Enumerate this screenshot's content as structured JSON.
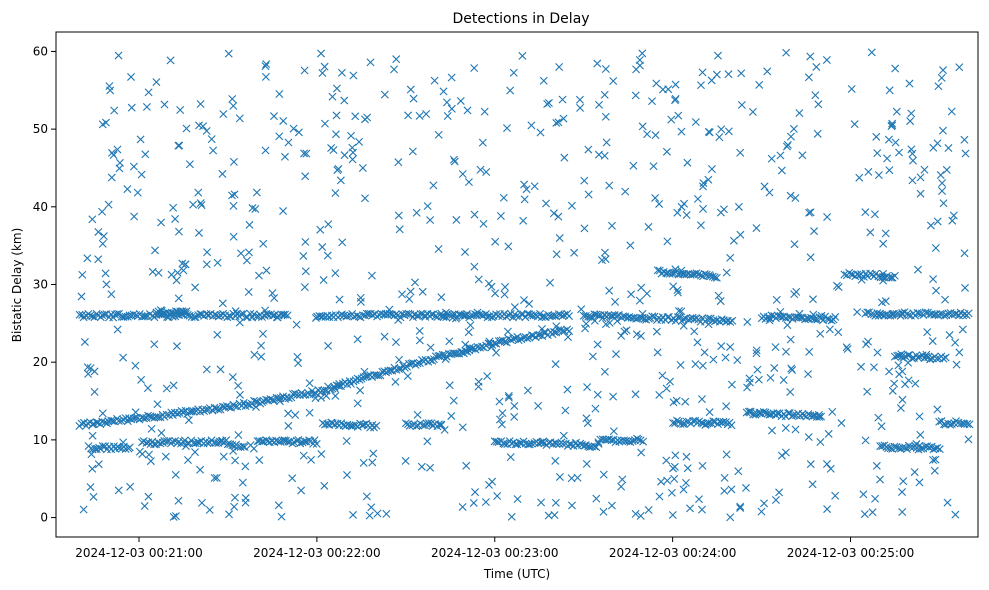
{
  "chart_data": {
    "type": "scatter",
    "title": "Detections in Delay",
    "xlabel": "Time (UTC)",
    "ylabel": "Bistatic Delay (km)",
    "xlim": [
      "2024-12-03 00:20:32",
      "2024-12-03 00:25:43"
    ],
    "ylim": [
      -2.5,
      62.5
    ],
    "x_ticks": [
      "2024-12-03 00:21:00",
      "2024-12-03 00:22:00",
      "2024-12-03 00:23:00",
      "2024-12-03 00:24:00",
      "2024-12-03 00:25:00"
    ],
    "y_ticks": [
      0,
      10,
      20,
      30,
      40,
      50,
      60
    ],
    "marker": "x",
    "color": "#1f77b4",
    "grid": false,
    "legend": "none",
    "x_range": [
      "2024-12-03 00:20:40",
      "2024-12-03 00:25:40"
    ],
    "tracks": [
      {
        "x": [
          "2024-12-03 00:20:40",
          "2024-12-03 00:21:30",
          "2024-12-03 00:22:00",
          "2024-12-03 00:22:30",
          "2024-12-03 00:23:00",
          "2024-12-03 00:23:25"
        ],
        "y": [
          11.9,
          14.2,
          16.2,
          19.5,
          22.5,
          24.2
        ]
      },
      {
        "x": [
          "2024-12-03 00:20:40",
          "2024-12-03 00:21:50"
        ],
        "y": [
          26.0,
          26.0
        ]
      },
      {
        "x": [
          "2024-12-03 00:22:00",
          "2024-12-03 00:23:25"
        ],
        "y": [
          26.0,
          26.0
        ]
      },
      {
        "x": [
          "2024-12-03 00:23:30",
          "2024-12-03 00:24:20"
        ],
        "y": [
          26.0,
          25.3
        ]
      },
      {
        "x": [
          "2024-12-03 00:24:30",
          "2024-12-03 00:24:55"
        ],
        "y": [
          25.8,
          25.6
        ]
      },
      {
        "x": [
          "2024-12-03 00:25:05",
          "2024-12-03 00:25:40"
        ],
        "y": [
          26.2,
          26.2
        ]
      },
      {
        "x": [
          "2024-12-03 00:23:55",
          "2024-12-03 00:24:15"
        ],
        "y": [
          31.6,
          31.0
        ]
      },
      {
        "x": [
          "2024-12-03 00:24:58",
          "2024-12-03 00:25:15"
        ],
        "y": [
          31.3,
          31.1
        ]
      },
      {
        "x": [
          "2024-12-03 00:20:43",
          "2024-12-03 00:20:57"
        ],
        "y": [
          9.0,
          9.0
        ]
      },
      {
        "x": [
          "2024-12-03 00:21:01",
          "2024-12-03 00:21:28"
        ],
        "y": [
          9.6,
          9.8
        ]
      },
      {
        "x": [
          "2024-12-03 00:21:28",
          "2024-12-03 00:21:35"
        ],
        "y": [
          9.9,
          9.1
        ]
      },
      {
        "x": [
          "2024-12-03 00:21:40",
          "2024-12-03 00:22:00"
        ],
        "y": [
          9.9,
          9.7
        ]
      },
      {
        "x": [
          "2024-12-03 00:22:02",
          "2024-12-03 00:22:20"
        ],
        "y": [
          12.1,
          11.8
        ]
      },
      {
        "x": [
          "2024-12-03 00:22:30",
          "2024-12-03 00:22:42"
        ],
        "y": [
          12.0,
          11.9
        ]
      },
      {
        "x": [
          "2024-12-03 00:23:00",
          "2024-12-03 00:23:35"
        ],
        "y": [
          9.7,
          9.3
        ]
      },
      {
        "x": [
          "2024-12-03 00:23:35",
          "2024-12-03 00:23:50"
        ],
        "y": [
          9.8,
          10.0
        ]
      },
      {
        "x": [
          "2024-12-03 00:24:00",
          "2024-12-03 00:24:20"
        ],
        "y": [
          12.3,
          12.1
        ]
      },
      {
        "x": [
          "2024-12-03 00:24:25",
          "2024-12-03 00:24:50"
        ],
        "y": [
          13.5,
          13.0
        ]
      },
      {
        "x": [
          "2024-12-03 00:25:10",
          "2024-12-03 00:25:30"
        ],
        "y": [
          9.1,
          9.0
        ]
      },
      {
        "x": [
          "2024-12-03 00:25:30",
          "2024-12-03 00:25:40"
        ],
        "y": [
          12.2,
          12.2
        ]
      },
      {
        "x": [
          "2024-12-03 00:25:15",
          "2024-12-03 00:25:32"
        ],
        "y": [
          20.8,
          20.5
        ]
      },
      {
        "x": [
          "2024-12-03 00:21:06",
          "2024-12-03 00:21:16"
        ],
        "y": [
          26.5,
          26.4
        ]
      }
    ],
    "clutter_y_range": [
      0,
      60
    ],
    "clutter_count": 850
  }
}
